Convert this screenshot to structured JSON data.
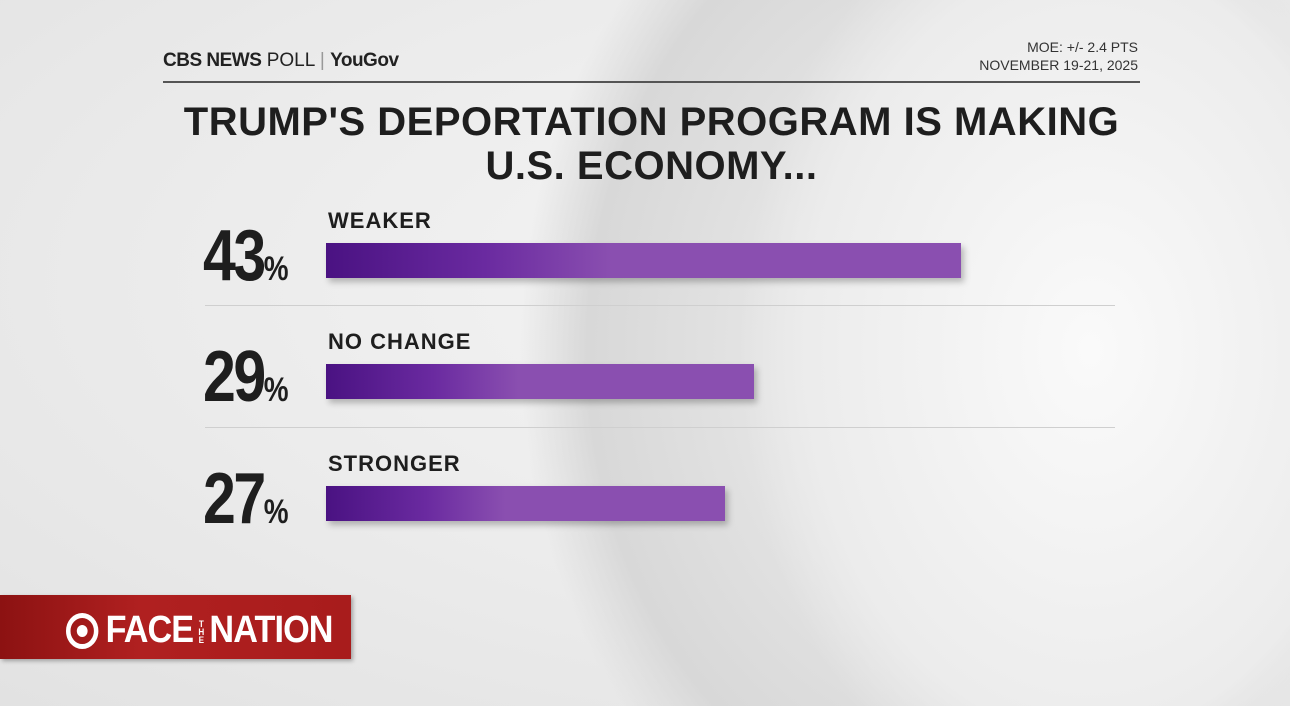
{
  "header": {
    "brand": "CBS NEWS",
    "poll": "POLL",
    "partner": "YouGov",
    "moe": "MOE: +/- 2.4 PTS",
    "date": "NOVEMBER 19-21, 2025"
  },
  "footer": {
    "show_face": "FACE",
    "show_the": "THE",
    "show_nation": "NATION"
  },
  "colors": {
    "bar": "#8a4fb0",
    "bar_dark": "#4a1282",
    "banner": "#a81c1c"
  },
  "chart_data": {
    "type": "bar",
    "orientation": "horizontal",
    "title": "TRUMP'S DEPORTATION PROGRAM IS MAKING U.S. ECONOMY...",
    "categories": [
      "WEAKER",
      "NO CHANGE",
      "STRONGER"
    ],
    "values": [
      43,
      29,
      27
    ],
    "value_labels": [
      "43",
      "29",
      "27"
    ],
    "unit": "%",
    "xlim": [
      0,
      43
    ]
  }
}
